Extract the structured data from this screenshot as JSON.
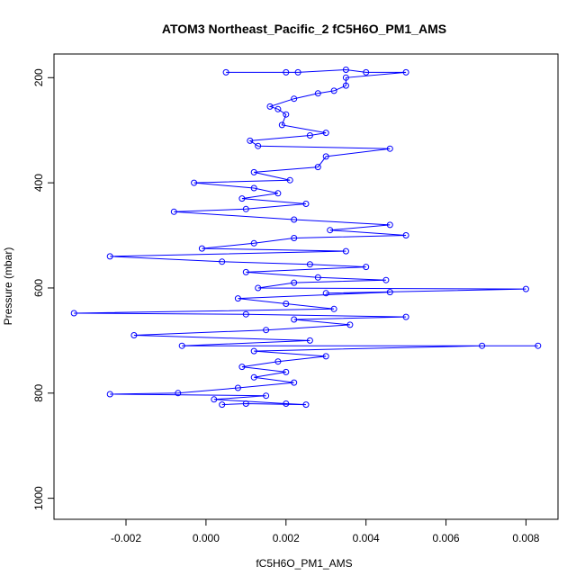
{
  "chart_data": {
    "type": "scatter",
    "title": "ATOM3 Northeast_Pacific_2 fC5H6O_PM1_AMS",
    "xlabel": "fC5H6O_PM1_AMS",
    "ylabel": "Pressure (mbar)",
    "xlim": [
      -0.0038,
      0.0088
    ],
    "ylim": [
      1040,
      155
    ],
    "y_reversed": true,
    "x_ticks": [
      "-0.002",
      "0.000",
      "0.002",
      "0.004",
      "0.006",
      "0.008"
    ],
    "x_tick_values": [
      -0.002,
      0.0,
      0.002,
      0.004,
      0.006,
      0.008
    ],
    "y_ticks": [
      "200",
      "400",
      "600",
      "800",
      "1000"
    ],
    "y_tick_values": [
      200,
      400,
      600,
      800,
      1000
    ],
    "grid": false,
    "marker": "open-circle",
    "connect_points": true,
    "color": "#0000ff",
    "series": [
      {
        "values": [
          [
            0.0005,
            190
          ],
          [
            0.002,
            190
          ],
          [
            0.0023,
            190
          ],
          [
            0.0035,
            185
          ],
          [
            0.004,
            190
          ],
          [
            0.005,
            190
          ],
          [
            0.0035,
            200
          ],
          [
            0.0035,
            215
          ],
          [
            0.0032,
            225
          ],
          [
            0.0028,
            230
          ],
          [
            0.0022,
            240
          ],
          [
            0.0016,
            255
          ],
          [
            0.0018,
            260
          ],
          [
            0.002,
            270
          ],
          [
            0.0019,
            290
          ],
          [
            0.003,
            305
          ],
          [
            0.0026,
            310
          ],
          [
            0.0011,
            320
          ],
          [
            0.0013,
            330
          ],
          [
            0.0046,
            335
          ],
          [
            0.003,
            350
          ],
          [
            0.0028,
            370
          ],
          [
            0.0012,
            380
          ],
          [
            0.0021,
            395
          ],
          [
            -0.0003,
            400
          ],
          [
            0.0012,
            410
          ],
          [
            0.0018,
            420
          ],
          [
            0.0009,
            430
          ],
          [
            0.0025,
            440
          ],
          [
            0.001,
            450
          ],
          [
            -0.0008,
            455
          ],
          [
            0.0022,
            470
          ],
          [
            0.0046,
            480
          ],
          [
            0.0031,
            490
          ],
          [
            0.005,
            500
          ],
          [
            0.0022,
            505
          ],
          [
            0.0012,
            515
          ],
          [
            -0.0001,
            525
          ],
          [
            0.0035,
            530
          ],
          [
            -0.0024,
            540
          ],
          [
            0.0004,
            550
          ],
          [
            0.0026,
            555
          ],
          [
            0.004,
            560
          ],
          [
            0.001,
            570
          ],
          [
            0.0028,
            580
          ],
          [
            0.0045,
            585
          ],
          [
            0.0022,
            590
          ],
          [
            0.0013,
            600
          ],
          [
            0.008,
            602
          ],
          [
            0.003,
            610
          ],
          [
            0.0046,
            608
          ],
          [
            0.0008,
            620
          ],
          [
            0.002,
            630
          ],
          [
            0.0032,
            640
          ],
          [
            -0.0033,
            648
          ],
          [
            0.001,
            650
          ],
          [
            0.005,
            655
          ],
          [
            0.0022,
            660
          ],
          [
            0.0036,
            670
          ],
          [
            0.0015,
            680
          ],
          [
            -0.0018,
            690
          ],
          [
            0.0026,
            700
          ],
          [
            -0.0006,
            710
          ],
          [
            0.0083,
            710
          ],
          [
            0.0069,
            710
          ],
          [
            0.0012,
            720
          ],
          [
            0.003,
            730
          ],
          [
            0.0018,
            740
          ],
          [
            0.0009,
            750
          ],
          [
            0.002,
            760
          ],
          [
            0.0012,
            770
          ],
          [
            0.0022,
            780
          ],
          [
            0.0008,
            790
          ],
          [
            -0.0007,
            800
          ],
          [
            -0.0024,
            802
          ],
          [
            0.0015,
            805
          ],
          [
            0.0002,
            812
          ],
          [
            0.002,
            820
          ],
          [
            0.0025,
            822
          ],
          [
            0.001,
            820
          ],
          [
            0.0004,
            822
          ]
        ]
      }
    ]
  }
}
